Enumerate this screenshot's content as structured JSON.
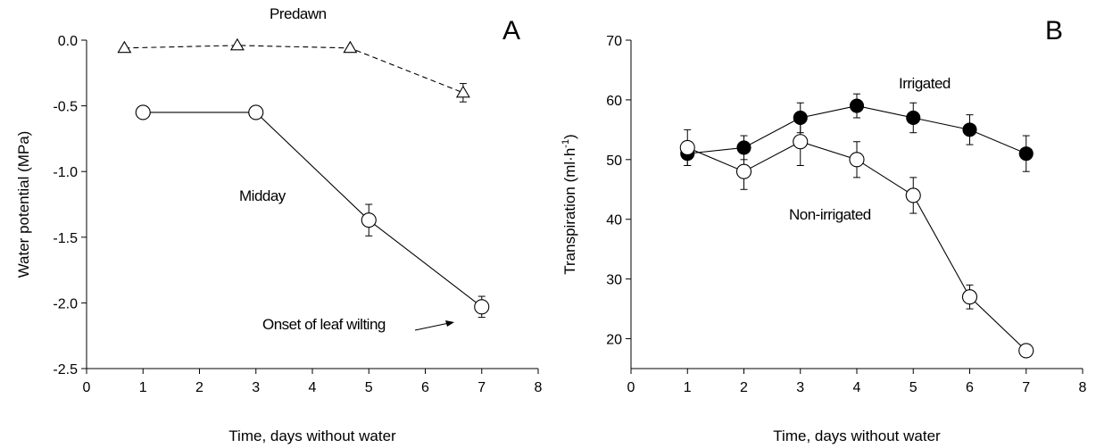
{
  "chart_data": [
    {
      "panel": "A",
      "type": "line",
      "xlabel": "Time, days without water",
      "ylabel": "Water potential (MPa)",
      "xlim": [
        0,
        8
      ],
      "ylim": [
        -2.5,
        0.0
      ],
      "xticks": [
        "0",
        "1",
        "2",
        "3",
        "4",
        "5",
        "6",
        "7",
        "8"
      ],
      "yticks": [
        "0.0",
        "-0.5",
        "-1.0",
        "-1.5",
        "-2.0",
        "-2.5"
      ],
      "grid": false,
      "series": [
        {
          "name": "Predawn",
          "marker": "open-triangle",
          "line": "dashed",
          "points": [
            {
              "x": 0.67,
              "y": -0.06,
              "err": 0
            },
            {
              "x": 2.67,
              "y": -0.04,
              "err": 0
            },
            {
              "x": 4.67,
              "y": -0.06,
              "err": 0
            },
            {
              "x": 6.67,
              "y": -0.4,
              "err": 0.07
            }
          ]
        },
        {
          "name": "Midday",
          "marker": "open-circle",
          "line": "solid",
          "points": [
            {
              "x": 1,
              "y": -0.55,
              "err": 0
            },
            {
              "x": 3,
              "y": -0.55,
              "err": 0
            },
            {
              "x": 5,
              "y": -1.37,
              "err": 0.12
            },
            {
              "x": 7,
              "y": -2.03,
              "err": 0.08
            }
          ]
        }
      ],
      "annotations": [
        {
          "text": "Predawn",
          "target": "series-label"
        },
        {
          "text": "Midday",
          "target": "series-label"
        },
        {
          "text": "Onset of leaf wilting",
          "arrow_to": {
            "x": 7,
            "y": -2.03
          }
        }
      ]
    },
    {
      "panel": "B",
      "type": "line",
      "xlabel": "Time, days without water",
      "ylabel": "Transpiration (ml·h⁻¹)",
      "ylabel_main": "Transpiration (ml·h",
      "ylabel_sup": "-1",
      "ylabel_end": ")",
      "xlim": [
        0,
        8
      ],
      "ylim": [
        15,
        70
      ],
      "xticks": [
        "0",
        "1",
        "2",
        "3",
        "4",
        "5",
        "6",
        "7",
        "8"
      ],
      "yticks": [
        "20",
        "30",
        "40",
        "50",
        "60",
        "70"
      ],
      "ytick_values": [
        20,
        30,
        40,
        50,
        60,
        70
      ],
      "grid": false,
      "series": [
        {
          "name": "Irrigated",
          "marker": "filled-circle",
          "line": "solid",
          "points": [
            {
              "x": 1,
              "y": 51,
              "err": 2
            },
            {
              "x": 2,
              "y": 52,
              "err": 2
            },
            {
              "x": 3,
              "y": 57,
              "err": 2.5
            },
            {
              "x": 4,
              "y": 59,
              "err": 2
            },
            {
              "x": 5,
              "y": 57,
              "err": 2.5
            },
            {
              "x": 6,
              "y": 55,
              "err": 2.5
            },
            {
              "x": 7,
              "y": 51,
              "err": 3
            }
          ]
        },
        {
          "name": "Non-irrigated",
          "marker": "open-circle",
          "line": "solid",
          "points": [
            {
              "x": 1,
              "y": 52,
              "err": 3
            },
            {
              "x": 2,
              "y": 48,
              "err": 3
            },
            {
              "x": 3,
              "y": 53,
              "err": 4
            },
            {
              "x": 4,
              "y": 50,
              "err": 3
            },
            {
              "x": 5,
              "y": 44,
              "err": 3
            },
            {
              "x": 6,
              "y": 27,
              "err": 2
            },
            {
              "x": 7,
              "y": 18,
              "err": 0
            }
          ]
        }
      ]
    }
  ]
}
